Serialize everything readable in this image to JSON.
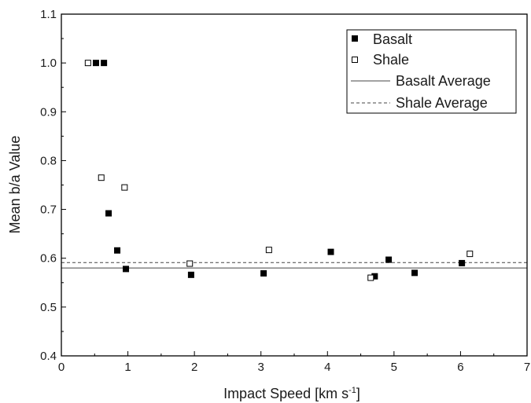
{
  "chart_data": {
    "type": "scatter",
    "xlabel": "Impact Speed [km s",
    "xlabel_sup": "-1",
    "xlabel_end": "]",
    "ylabel": "Mean b/a Value",
    "xlim": [
      0,
      7
    ],
    "ylim": [
      0.4,
      1.1
    ],
    "x_ticks": [
      "0",
      "1",
      "2",
      "3",
      "4",
      "5",
      "6",
      "7"
    ],
    "y_ticks": [
      "0.4",
      "0.5",
      "0.6",
      "0.7",
      "0.8",
      "0.9",
      "1.0",
      "1.1"
    ],
    "grid": false,
    "legend_position": "top-right",
    "series": [
      {
        "name": "Basalt",
        "marker": "filled-square",
        "color": "#000000",
        "points": [
          [
            0.52,
            1.0
          ],
          [
            0.64,
            1.0
          ],
          [
            0.71,
            0.692
          ],
          [
            0.84,
            0.616
          ],
          [
            0.97,
            0.578
          ],
          [
            1.95,
            0.566
          ],
          [
            3.04,
            0.569
          ],
          [
            4.05,
            0.613
          ],
          [
            4.71,
            0.563
          ],
          [
            4.92,
            0.597
          ],
          [
            5.31,
            0.57
          ],
          [
            6.02,
            0.59
          ]
        ]
      },
      {
        "name": "Shale",
        "marker": "open-square",
        "color": "#000000",
        "points": [
          [
            0.4,
            1.0
          ],
          [
            0.6,
            0.765
          ],
          [
            0.95,
            0.745
          ],
          [
            1.93,
            0.589
          ],
          [
            3.12,
            0.617
          ],
          [
            4.65,
            0.56
          ],
          [
            6.14,
            0.609
          ]
        ]
      }
    ],
    "reference_lines": [
      {
        "name": "Basalt Average",
        "y": 0.58,
        "style": "solid",
        "color": "#444444"
      },
      {
        "name": "Shale Average",
        "y": 0.591,
        "style": "dashed",
        "color": "#444444"
      }
    ]
  }
}
